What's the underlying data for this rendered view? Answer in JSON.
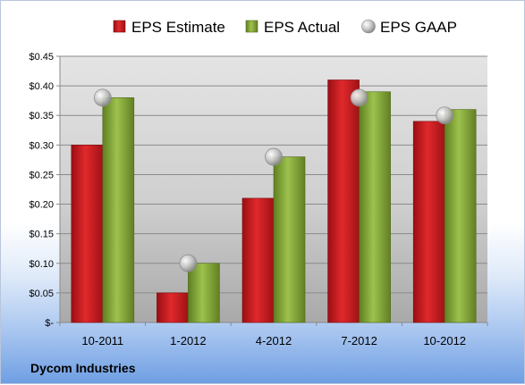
{
  "chart_data": {
    "type": "bar",
    "categories": [
      "10-2011",
      "1-2012",
      "4-2012",
      "7-2012",
      "10-2012"
    ],
    "series": [
      {
        "name": "EPS Estimate",
        "type": "bar",
        "color": "#c8191d",
        "values": [
          0.3,
          0.05,
          0.21,
          0.41,
          0.34
        ]
      },
      {
        "name": "EPS Actual",
        "type": "bar",
        "color": "#86a93a",
        "values": [
          0.38,
          0.1,
          0.28,
          0.39,
          0.36
        ]
      },
      {
        "name": "EPS GAAP",
        "type": "scatter",
        "color": "#b8b8b8",
        "values": [
          0.38,
          0.1,
          0.28,
          0.38,
          0.35
        ]
      }
    ],
    "ylim": [
      0,
      0.45
    ],
    "yticks": [
      0,
      0.05,
      0.1,
      0.15,
      0.2,
      0.25,
      0.3,
      0.35,
      0.4,
      0.45
    ],
    "ytick_labels": [
      "$-",
      "$0.05",
      "$0.10",
      "$0.15",
      "$0.20",
      "$0.25",
      "$0.30",
      "$0.35",
      "$0.40",
      "$0.45"
    ],
    "grid": true,
    "legend_position": "top",
    "footer_text": "Dycom Industries"
  }
}
